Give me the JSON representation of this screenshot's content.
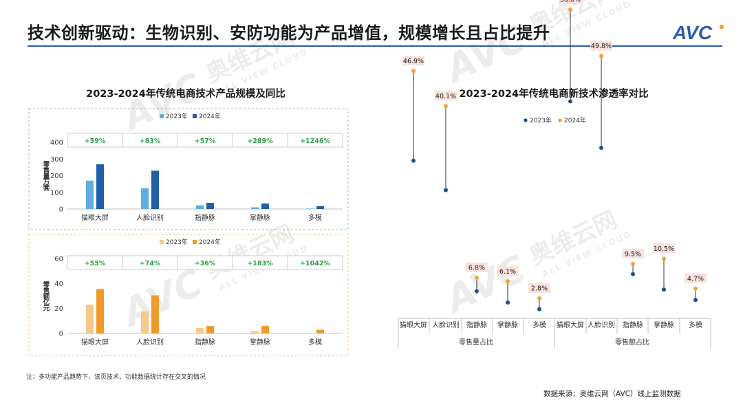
{
  "page": {
    "title": "技术创新驱动：生物识别、安防功能为产品增值，规模增长且占比提升",
    "logo_text": "AVC",
    "watermark_cn": "奥维云网",
    "watermark_en": "ALL VIEW CLOUD",
    "note": "注：多功能产品趋势下，该页技术、功能数据统计存在交叉的情况",
    "source": "数据来源：奥维云网（AVC）线上监测数据"
  },
  "colors": {
    "blue_2023": "#5dade2",
    "blue_2024": "#1f5fa8",
    "orange_2023": "#f6c889",
    "orange_2024": "#ef9a2b",
    "growth_green": "#2e9e4a",
    "lollipop_2023": "#1f4e8c",
    "lollipop_2024": "#efa23a",
    "label_box": "#fbe2dc",
    "accent": "#2f5da8"
  },
  "chart_data": [
    {
      "type": "bar",
      "title": "2023-2024年传统电商技术产品规模及同比",
      "ylabel": "零售量万套",
      "categories": [
        "猫眼大屏",
        "人脸识别",
        "指静脉",
        "掌静脉",
        "多模"
      ],
      "ylim": [
        0,
        400
      ],
      "yticks": [
        "0",
        "100",
        "200",
        "300",
        "400"
      ],
      "series": [
        {
          "name": "2023年",
          "values": [
            170,
            125,
            22,
            10,
            3
          ]
        },
        {
          "name": "2024年",
          "values": [
            268,
            230,
            37,
            33,
            17
          ]
        }
      ],
      "growth": [
        "+59%",
        "+83%",
        "+57%",
        "+289%",
        "+1246%"
      ]
    },
    {
      "type": "bar",
      "ylabel": "零售额亿元",
      "categories": [
        "猫眼大屏",
        "人脸识别",
        "指静脉",
        "掌静脉",
        "多模"
      ],
      "ylim": [
        0,
        60
      ],
      "yticks": [
        "0",
        "20",
        "40",
        "60"
      ],
      "series": [
        {
          "name": "2023年",
          "values": [
            23,
            17.5,
            4.5,
            2,
            0.3
          ]
        },
        {
          "name": "2024年",
          "values": [
            35.5,
            30.5,
            6,
            6,
            3
          ]
        }
      ],
      "growth": [
        "+55%",
        "+74%",
        "+36%",
        "+183%",
        "+1042%"
      ]
    },
    {
      "type": "scatter",
      "title": "2023-2024年传统电商新技术渗透率对比",
      "groups": [
        {
          "name": "零售量占比",
          "categories": [
            "猫眼大屏",
            "人脸识别",
            "指静脉",
            "掌静脉",
            "多模"
          ]
        },
        {
          "name": "零售额占比",
          "categories": [
            "猫眼大屏",
            "人脸识别",
            "指静脉",
            "掌静脉",
            "多模"
          ]
        }
      ],
      "series": [
        {
          "name": "2023年",
          "values": [
            29.5,
            23.8,
            4.2,
            2.0,
            0.7,
            41.0,
            32.0,
            7.5,
            4.5,
            2.5
          ]
        },
        {
          "name": "2024年",
          "values": [
            46.9,
            40.1,
            6.8,
            6.1,
            2.8,
            58.8,
            49.8,
            9.5,
            10.5,
            4.7
          ]
        }
      ],
      "labels_2024": [
        "46.9%",
        "40.1%",
        "6.8%",
        "6.1%",
        "2.8%",
        "58.8%",
        "49.8%",
        "9.5%",
        "10.5%",
        "4.7%"
      ]
    }
  ]
}
